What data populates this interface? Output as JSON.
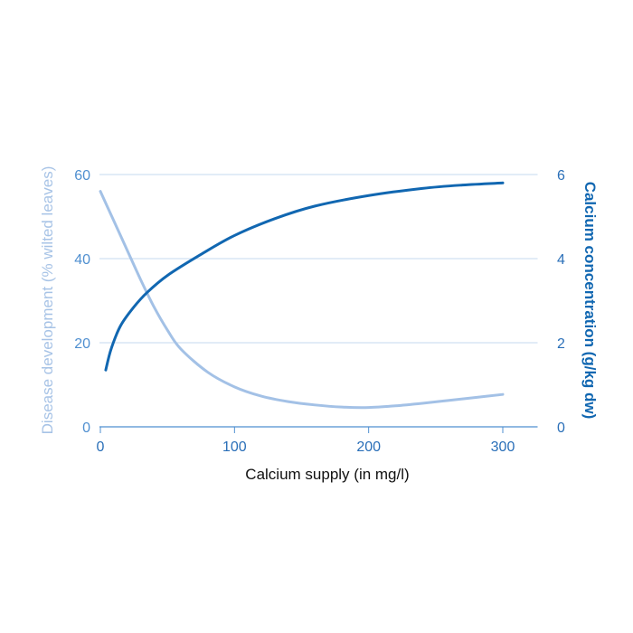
{
  "chart_data": {
    "type": "line",
    "xlabel": "Calcium supply (in mg/l)",
    "ylabel_left": "Disease development (% wilted leaves)",
    "ylabel_right": "Calcium concentration (g/kg dw)",
    "xlim": [
      0,
      330
    ],
    "ylim_left": [
      0,
      60
    ],
    "ylim_right": [
      0,
      6
    ],
    "x_ticks": [
      0,
      100,
      200,
      300
    ],
    "y_ticks_left": [
      0,
      20,
      40,
      60
    ],
    "y_ticks_right": [
      0,
      2,
      4,
      6
    ],
    "grid": true,
    "colors": {
      "disease": "#a3c1e6",
      "calcium": "#1167b1",
      "grid": "#c5d8ef",
      "axis": "#4f8fd0"
    },
    "series": [
      {
        "axis": "left",
        "points": [
          [
            0,
            56
          ],
          [
            10,
            49
          ],
          [
            20,
            42
          ],
          [
            30,
            35
          ],
          [
            40,
            28.5
          ],
          [
            50,
            23
          ],
          [
            60,
            18.5
          ],
          [
            80,
            13
          ],
          [
            100,
            9.5
          ],
          [
            120,
            7.3
          ],
          [
            140,
            6
          ],
          [
            160,
            5.2
          ],
          [
            180,
            4.7
          ],
          [
            200,
            4.6
          ],
          [
            220,
            5
          ],
          [
            240,
            5.6
          ],
          [
            260,
            6.3
          ],
          [
            280,
            7
          ],
          [
            300,
            7.7
          ]
        ]
      },
      {
        "axis": "right",
        "points": [
          [
            4,
            1.35
          ],
          [
            8,
            1.85
          ],
          [
            15,
            2.4
          ],
          [
            25,
            2.85
          ],
          [
            35,
            3.2
          ],
          [
            50,
            3.6
          ],
          [
            75,
            4.1
          ],
          [
            100,
            4.55
          ],
          [
            130,
            4.95
          ],
          [
            160,
            5.25
          ],
          [
            200,
            5.5
          ],
          [
            240,
            5.67
          ],
          [
            270,
            5.75
          ],
          [
            300,
            5.8
          ]
        ]
      }
    ]
  }
}
